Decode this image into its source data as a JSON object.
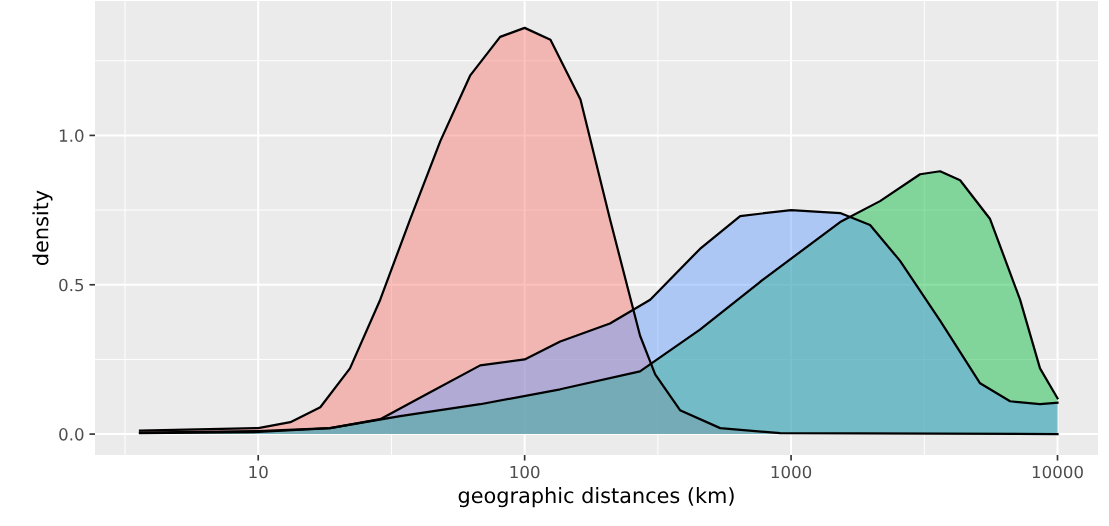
{
  "chart_data": {
    "type": "area",
    "xlabel": "geographic distances (km)",
    "ylabel": "density",
    "log": "x",
    "xlim": [
      2.44,
      14190
    ],
    "ylim": [
      -0.07,
      1.45
    ],
    "xticks": [
      10,
      100,
      1000,
      10000
    ],
    "yticks": [
      {
        "value": 0,
        "label": "0.0"
      },
      {
        "value": 0.5,
        "label": "0.5"
      },
      {
        "value": 1,
        "label": "1.0"
      }
    ],
    "grid": true,
    "legend": false,
    "series": [
      {
        "color": "#f8766d",
        "x": [
          3.6,
          10,
          13.2,
          17.1,
          22.1,
          28.7,
          37.2,
          48.2,
          62.4,
          80.9,
          100,
          125,
          162,
          209,
          271,
          309,
          383,
          542,
          910,
          10000
        ],
        "values": [
          0.012,
          0.02,
          0.04,
          0.09,
          0.22,
          0.45,
          0.72,
          0.98,
          1.2,
          1.33,
          1.36,
          1.32,
          1.12,
          0.72,
          0.33,
          0.2,
          0.08,
          0.02,
          0.003,
          0
        ]
      },
      {
        "color": "#00ba38",
        "x": [
          3.6,
          10,
          18.6,
          34.1,
          68.1,
          136,
          271,
          455,
          766,
          1528,
          2157,
          3049,
          3625,
          4310,
          5584,
          7236,
          8597,
          10000
        ],
        "values": [
          0.003,
          0.007,
          0.02,
          0.06,
          0.1,
          0.15,
          0.21,
          0.35,
          0.51,
          0.71,
          0.78,
          0.87,
          0.88,
          0.85,
          0.72,
          0.45,
          0.22,
          0.12
        ]
      },
      {
        "color": "#619cff",
        "x": [
          3.6,
          10,
          18.6,
          28.7,
          44.2,
          68.1,
          100,
          136,
          209,
          296,
          455,
          644,
          1000,
          1528,
          1979,
          2565,
          3625,
          5122,
          6638,
          8597,
          10000
        ],
        "values": [
          0.005,
          0.01,
          0.02,
          0.05,
          0.14,
          0.23,
          0.25,
          0.31,
          0.37,
          0.45,
          0.62,
          0.73,
          0.75,
          0.74,
          0.7,
          0.58,
          0.38,
          0.17,
          0.11,
          0.1,
          0.105
        ]
      }
    ]
  }
}
